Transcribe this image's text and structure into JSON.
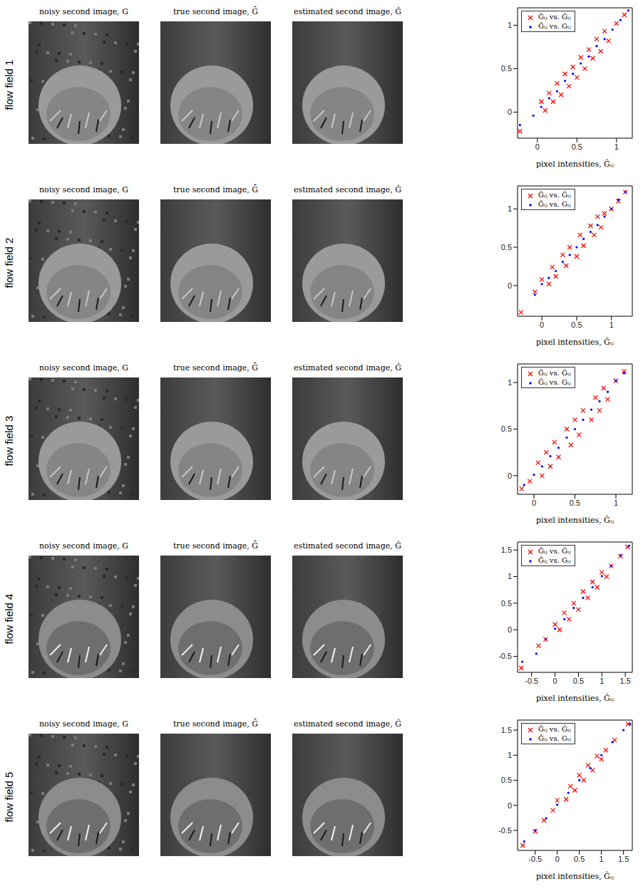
{
  "chart_data": [
    {
      "type": "scatter",
      "title": "flow field 1",
      "images": [
        {
          "title": "noisy second image, G"
        },
        {
          "title": "true second image, Ḡ"
        },
        {
          "title": "estimated second image, Ĝ"
        }
      ],
      "xlabel": "pixel intensities, Ĝᵢⱼ",
      "xlim": [
        -0.25,
        1.2
      ],
      "ylim": [
        -0.3,
        1.2
      ],
      "xticks": [
        0,
        0.5,
        1
      ],
      "yticks": [
        0,
        0.5,
        1
      ],
      "legend": "upper left",
      "series": [
        {
          "name": "Ĝᵢⱼ vs. Ḡᵢⱼ",
          "color": "#ff0000",
          "marker": "x",
          "x": [
            -0.22,
            0.05,
            0.1,
            0.15,
            0.2,
            0.25,
            0.3,
            0.35,
            0.4,
            0.45,
            0.5,
            0.55,
            0.6,
            0.65,
            0.7,
            0.75,
            0.8,
            0.85,
            0.9,
            1.0,
            1.1
          ],
          "values": [
            -0.22,
            0.12,
            0.02,
            0.22,
            0.12,
            0.33,
            0.2,
            0.44,
            0.3,
            0.52,
            0.4,
            0.63,
            0.5,
            0.72,
            0.62,
            0.84,
            0.7,
            0.93,
            0.82,
            1.02,
            1.12
          ]
        },
        {
          "name": "Ĝᵢⱼ vs. Gᵢⱼ",
          "color": "#0000ff",
          "marker": "dot",
          "x": [
            -0.22,
            -0.05,
            0.05,
            0.15,
            0.25,
            0.35,
            0.45,
            0.55,
            0.65,
            0.75,
            0.85,
            0.95,
            1.05,
            1.15
          ],
          "values": [
            -0.15,
            -0.04,
            0.06,
            0.16,
            0.24,
            0.36,
            0.44,
            0.56,
            0.64,
            0.76,
            0.84,
            0.95,
            1.06,
            1.17
          ]
        }
      ]
    },
    {
      "type": "scatter",
      "title": "flow field 2",
      "images": [
        {
          "title": "noisy second image, G"
        },
        {
          "title": "true second image, Ḡ"
        },
        {
          "title": "estimated second image, Ĝ"
        }
      ],
      "xlabel": "pixel intensities, Ĝᵢⱼ",
      "xlim": [
        -0.35,
        1.3
      ],
      "ylim": [
        -0.4,
        1.3
      ],
      "xticks": [
        0,
        0.5,
        1
      ],
      "yticks": [
        0,
        0.5,
        1
      ],
      "legend": "upper left",
      "series": [
        {
          "name": "Ĝᵢⱼ vs. Ḡᵢⱼ",
          "color": "#ff0000",
          "marker": "x",
          "x": [
            -0.3,
            -0.1,
            0.0,
            0.1,
            0.15,
            0.2,
            0.3,
            0.35,
            0.4,
            0.5,
            0.55,
            0.6,
            0.7,
            0.75,
            0.8,
            0.85,
            0.9,
            1.0,
            1.1,
            1.2
          ],
          "values": [
            -0.35,
            -0.08,
            0.08,
            0.02,
            0.24,
            0.12,
            0.4,
            0.26,
            0.5,
            0.38,
            0.66,
            0.52,
            0.78,
            0.66,
            0.9,
            0.76,
            0.94,
            1.0,
            1.1,
            1.22
          ]
        },
        {
          "name": "Ĝᵢⱼ vs. Gᵢⱼ",
          "color": "#0000ff",
          "marker": "dot",
          "x": [
            -0.1,
            0.0,
            0.1,
            0.2,
            0.3,
            0.4,
            0.5,
            0.6,
            0.7,
            0.8,
            0.9,
            1.0,
            1.1,
            1.2
          ],
          "values": [
            -0.12,
            0.02,
            0.1,
            0.19,
            0.31,
            0.4,
            0.5,
            0.61,
            0.7,
            0.79,
            0.9,
            1.0,
            1.12,
            1.22
          ]
        }
      ]
    },
    {
      "type": "scatter",
      "title": "flow field 3",
      "images": [
        {
          "title": "noisy second image, G"
        },
        {
          "title": "true second image, Ḡ"
        },
        {
          "title": "estimated second image, Ĝ"
        }
      ],
      "xlabel": "pixel intensities, Ĝᵢⱼ",
      "xlim": [
        -0.2,
        1.2
      ],
      "ylim": [
        -0.2,
        1.2
      ],
      "xticks": [
        0,
        0.5,
        1
      ],
      "yticks": [
        0,
        0.5,
        1
      ],
      "legend": "upper left",
      "series": [
        {
          "name": "Ĝᵢⱼ vs. Ḡᵢⱼ",
          "color": "#ff0000",
          "marker": "x",
          "x": [
            -0.15,
            -0.05,
            0.05,
            0.1,
            0.15,
            0.2,
            0.25,
            0.3,
            0.4,
            0.45,
            0.5,
            0.55,
            0.6,
            0.7,
            0.75,
            0.8,
            0.85,
            0.9,
            1.0,
            1.1
          ],
          "values": [
            -0.14,
            -0.06,
            0.14,
            0.0,
            0.25,
            0.1,
            0.36,
            0.2,
            0.5,
            0.33,
            0.6,
            0.44,
            0.7,
            0.6,
            0.84,
            0.7,
            0.94,
            0.82,
            1.02,
            1.12
          ]
        },
        {
          "name": "Ĝᵢⱼ vs. Gᵢⱼ",
          "color": "#0000ff",
          "marker": "dot",
          "x": [
            -0.12,
            0.0,
            0.1,
            0.2,
            0.3,
            0.4,
            0.5,
            0.6,
            0.7,
            0.8,
            0.9,
            1.0,
            1.1
          ],
          "values": [
            -0.1,
            0.01,
            0.1,
            0.21,
            0.3,
            0.41,
            0.5,
            0.6,
            0.71,
            0.8,
            0.9,
            1.02,
            1.1
          ]
        }
      ]
    },
    {
      "type": "scatter",
      "title": "flow field 4",
      "images": [
        {
          "title": "noisy second image, G"
        },
        {
          "title": "true second image, Ḡ"
        },
        {
          "title": "estimated second image, Ĝ"
        }
      ],
      "xlabel": "pixel intensities, Ĝᵢⱼ",
      "xlim": [
        -0.8,
        1.65
      ],
      "ylim": [
        -0.8,
        1.65
      ],
      "xticks": [
        -0.5,
        0,
        0.5,
        1,
        1.5
      ],
      "yticks": [
        -0.5,
        0,
        0.5,
        1,
        1.5
      ],
      "legend": "upper left",
      "series": [
        {
          "name": "Ĝᵢⱼ vs. Ḡᵢⱼ",
          "color": "#ff0000",
          "marker": "x",
          "x": [
            -0.72,
            -0.35,
            -0.2,
            0.0,
            0.1,
            0.2,
            0.3,
            0.4,
            0.5,
            0.6,
            0.7,
            0.8,
            0.9,
            1.0,
            1.1,
            1.2,
            1.4,
            1.55
          ],
          "values": [
            -0.72,
            -0.3,
            -0.18,
            0.1,
            0.0,
            0.32,
            0.2,
            0.5,
            0.38,
            0.72,
            0.6,
            0.9,
            0.8,
            1.08,
            1.0,
            1.2,
            1.38,
            1.56
          ]
        },
        {
          "name": "Ĝᵢⱼ vs. Gᵢⱼ",
          "color": "#0000ff",
          "marker": "dot",
          "x": [
            -0.7,
            -0.4,
            -0.2,
            0.0,
            0.2,
            0.4,
            0.6,
            0.8,
            1.0,
            1.2,
            1.4,
            1.58
          ],
          "values": [
            -0.6,
            -0.45,
            -0.18,
            0.02,
            0.2,
            0.41,
            0.6,
            0.8,
            1.01,
            1.2,
            1.4,
            1.58
          ]
        }
      ]
    },
    {
      "type": "scatter",
      "title": "flow field 5",
      "images": [
        {
          "title": "noisy second image, G"
        },
        {
          "title": "true second image, Ḡ"
        },
        {
          "title": "estimated second image, Ĝ"
        }
      ],
      "xlabel": "pixel intensities, Ĝᵢⱼ",
      "xlim": [
        -0.9,
        1.7
      ],
      "ylim": [
        -0.9,
        1.7
      ],
      "xticks": [
        -0.5,
        0,
        0.5,
        1,
        1.5
      ],
      "yticks": [
        -0.5,
        0,
        0.5,
        1,
        1.5
      ],
      "legend": "upper left",
      "series": [
        {
          "name": "Ĝᵢⱼ vs. Ḡᵢⱼ",
          "color": "#ff0000",
          "marker": "x",
          "x": [
            -0.78,
            -0.5,
            -0.3,
            -0.1,
            0.0,
            0.2,
            0.3,
            0.4,
            0.5,
            0.6,
            0.7,
            0.8,
            0.9,
            1.0,
            1.1,
            1.3,
            1.6
          ],
          "values": [
            -0.8,
            -0.52,
            -0.3,
            -0.1,
            0.1,
            0.12,
            0.38,
            0.3,
            0.6,
            0.5,
            0.8,
            0.7,
            0.98,
            0.92,
            1.1,
            1.3,
            1.62
          ]
        },
        {
          "name": "Ĝᵢⱼ vs. Gᵢⱼ",
          "color": "#0000ff",
          "marker": "dot",
          "x": [
            -0.75,
            -0.5,
            -0.25,
            0.0,
            0.25,
            0.5,
            0.75,
            1.0,
            1.25,
            1.5,
            1.65
          ],
          "values": [
            -0.72,
            -0.5,
            -0.26,
            0.01,
            0.25,
            0.5,
            0.74,
            1.0,
            1.26,
            1.5,
            1.62
          ]
        }
      ]
    }
  ]
}
